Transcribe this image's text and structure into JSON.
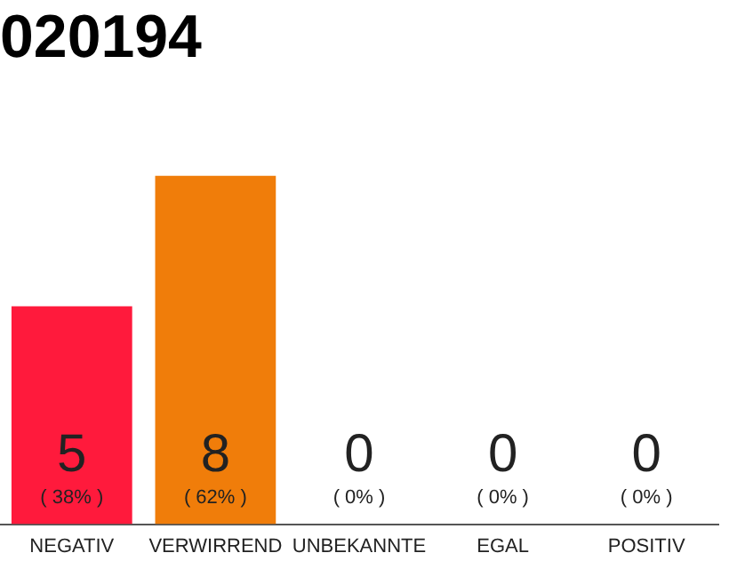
{
  "chart_data": {
    "type": "bar",
    "title": "020194",
    "categories": [
      "NEGATIV",
      "VERWIRREND",
      "UNBEKANNTE",
      "EGAL",
      "POSITIV"
    ],
    "values": [
      5,
      8,
      0,
      0,
      0
    ],
    "colors": [
      "#ff1a3c",
      "#f07d0a",
      "#e0e0e0",
      "#e0e0e0",
      "#e0e0e0"
    ],
    "tick_labels": "x",
    "grid": false,
    "legend": false,
    "value_labels": [
      "5\n( 38% )",
      "8\n( 62% )",
      "0\n( 0% )",
      "0\n( 0% )",
      "0\n( 0% )"
    ]
  }
}
